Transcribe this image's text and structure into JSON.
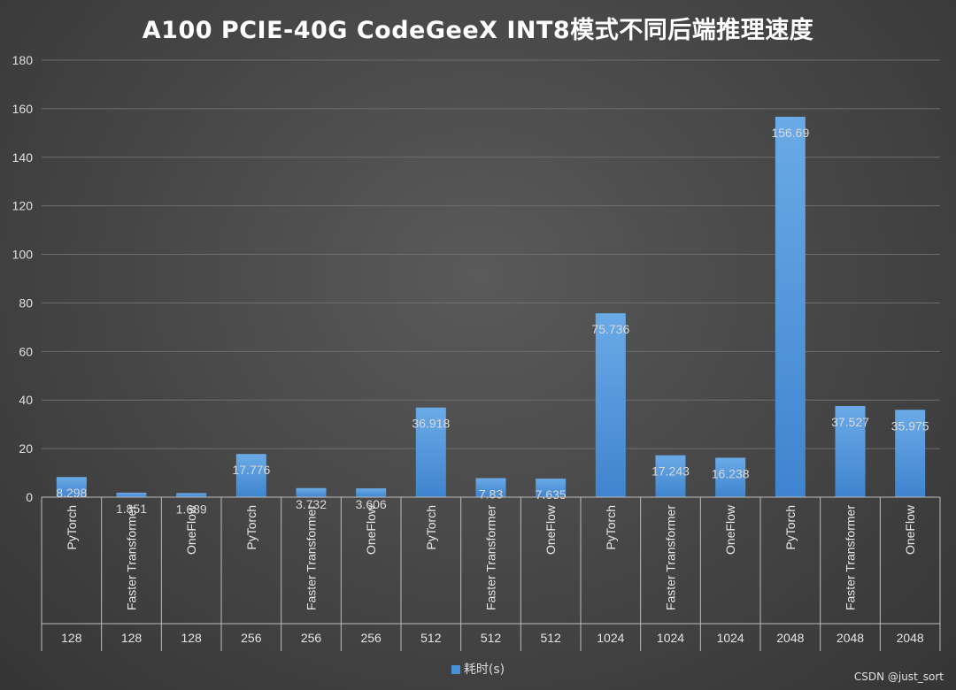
{
  "chart_data": {
    "type": "bar",
    "title": "A100 PCIE-40G CodeGeeX INT8模式不同后端推理速度",
    "xlabel": "",
    "ylabel": "",
    "ylim": [
      0,
      180
    ],
    "yticks": [
      0,
      20,
      40,
      60,
      80,
      100,
      120,
      140,
      160,
      180
    ],
    "grid": true,
    "legend_position": "bottom",
    "categories": [
      {
        "backend": "PyTorch",
        "group": "128"
      },
      {
        "backend": "Faster Transformer",
        "group": "128"
      },
      {
        "backend": "OneFlow",
        "group": "128"
      },
      {
        "backend": "PyTorch",
        "group": "256"
      },
      {
        "backend": "Faster Transformer",
        "group": "256"
      },
      {
        "backend": "OneFlow",
        "group": "256"
      },
      {
        "backend": "PyTorch",
        "group": "512"
      },
      {
        "backend": "Faster Transformer",
        "group": "512"
      },
      {
        "backend": "OneFlow",
        "group": "512"
      },
      {
        "backend": "PyTorch",
        "group": "1024"
      },
      {
        "backend": "Faster Transformer",
        "group": "1024"
      },
      {
        "backend": "OneFlow",
        "group": "1024"
      },
      {
        "backend": "PyTorch",
        "group": "2048"
      },
      {
        "backend": "Faster Transformer",
        "group": "2048"
      },
      {
        "backend": "OneFlow",
        "group": "2048"
      }
    ],
    "series": [
      {
        "name": "耗时(s)",
        "color": "#4a90d9",
        "values": [
          8.298,
          1.851,
          1.689,
          17.776,
          3.732,
          3.606,
          36.918,
          7.83,
          7.635,
          75.736,
          17.243,
          16.238,
          156.69,
          37.527,
          35.975
        ],
        "labels": [
          "8.298",
          "1.851",
          "1.689",
          "17.776",
          "3.732",
          "3.606",
          "36.918",
          "7.83",
          "7.635",
          "75.736",
          "17.243",
          "16.238",
          "156.69",
          "37.527",
          "35.975"
        ]
      }
    ]
  },
  "watermark": "CSDN @just_sort"
}
